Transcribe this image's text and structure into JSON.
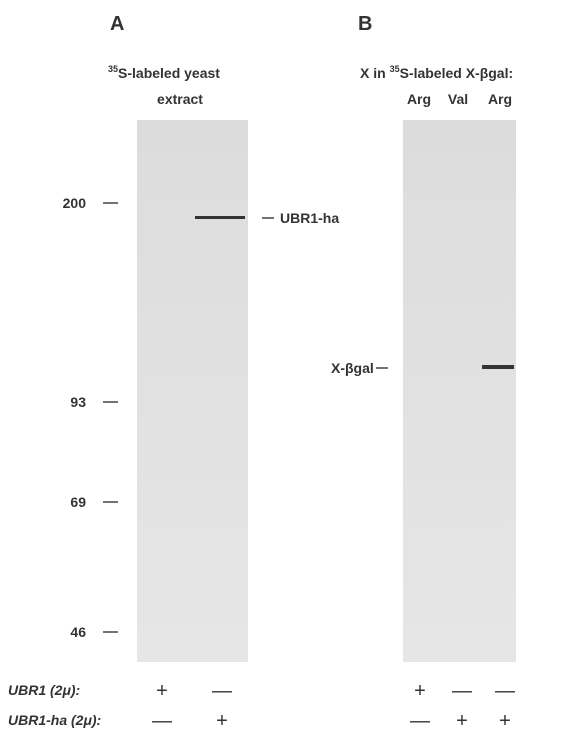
{
  "panel_a": {
    "label": "A",
    "title_superscript": "35",
    "title_line1": "S-labeled yeast",
    "title_line2": "extract",
    "markers": [
      "200",
      "93",
      "69",
      "46"
    ],
    "band_label": "UBR1-ha"
  },
  "panel_b": {
    "label": "B",
    "title_prefix": "X in ",
    "title_superscript": "35",
    "title_suffix": "S-labeled X-βgal:",
    "lanes": [
      "Arg",
      "Val",
      "Arg"
    ],
    "band_label": "X-βgal"
  },
  "genotypes": [
    {
      "label": "UBR1 (2μ):",
      "panel_a": [
        "+",
        "—"
      ],
      "panel_b": [
        "+",
        "—",
        "—"
      ]
    },
    {
      "label": "UBR1-ha (2μ):",
      "panel_a": [
        "—",
        "+"
      ],
      "panel_b": [
        "—",
        "+",
        "+"
      ]
    }
  ]
}
